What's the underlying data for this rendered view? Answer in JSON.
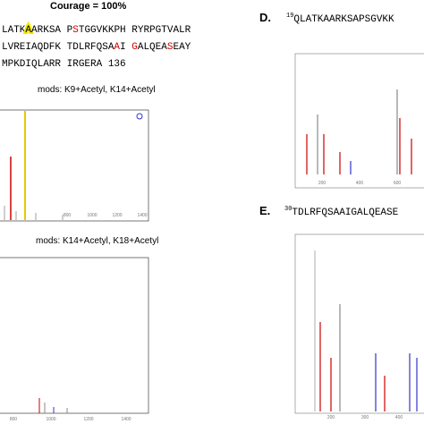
{
  "panel_c": {
    "confidence": "Courage = 100%",
    "sequence_lines": [
      [
        {
          "text": "LATK"
        },
        {
          "text": "A",
          "highlight": "#f2e600"
        },
        {
          "text": "ARKSA P"
        },
        {
          "text": "S",
          "color": "#d40000"
        },
        {
          "text": "TGGVKKPH RYRPGTVALR"
        }
      ],
      [
        {
          "text": "LVREIAQDFK TDLRFQSA"
        },
        {
          "text": "A",
          "color": "#d40000"
        },
        {
          "text": "I "
        },
        {
          "text": "G",
          "color": "#d40000"
        },
        {
          "text": "ALQEA"
        },
        {
          "text": "S",
          "color": "#d40000"
        },
        {
          "text": "EAY"
        }
      ],
      [
        {
          "text": "MPKDIQLARR IRGERA 136"
        }
      ]
    ],
    "spectrum_1": {
      "mods": "mods: K9+Acetyl, K14+Acetyl",
      "x_ticks": [
        "800",
        "1000",
        "1200",
        "1400"
      ]
    },
    "spectrum_2": {
      "mods": "mods: K14+Acetyl, K18+Acetyl",
      "x_ticks": [
        "800",
        "1000",
        "1200",
        "1400"
      ]
    }
  },
  "panel_d": {
    "label": "D.",
    "start": "19",
    "sequence": "QLATKAARKSAPSGVKK",
    "x_ticks": [
      "200",
      "400",
      "600"
    ]
  },
  "panel_e": {
    "label": "E.",
    "start": "30",
    "sequence": "TDLRFQSAAIGALQEASE",
    "x_ticks": [
      "200",
      "300",
      "400"
    ]
  }
}
